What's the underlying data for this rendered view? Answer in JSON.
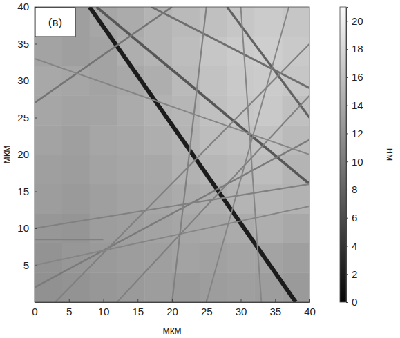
{
  "chart_data": {
    "type": "heatmap",
    "panel_label": "(в)",
    "x_label": "мкм",
    "y_label": "мкм",
    "xlim": [
      0,
      40
    ],
    "ylim": [
      0,
      40
    ],
    "xticks": [
      0,
      5,
      10,
      15,
      20,
      25,
      30,
      35,
      40
    ],
    "yticks": [
      5,
      10,
      15,
      20,
      25,
      30,
      35,
      40
    ],
    "cells": [
      [
        12.0,
        12.2,
        12.5,
        12.8,
        13.0,
        12.8,
        13.0,
        13.2,
        13.0,
        12.8
      ],
      [
        12.2,
        12.5,
        12.8,
        13.0,
        13.2,
        13.5,
        13.4,
        13.6,
        13.5,
        13.2
      ],
      [
        12.5,
        12.3,
        13.0,
        13.2,
        13.5,
        13.8,
        14.0,
        14.2,
        14.5,
        14.0
      ],
      [
        13.0,
        12.8,
        13.2,
        13.5,
        13.8,
        14.2,
        14.5,
        15.0,
        15.2,
        14.8
      ],
      [
        13.2,
        13.0,
        13.5,
        13.8,
        14.0,
        14.8,
        15.2,
        15.5,
        15.8,
        15.0
      ],
      [
        13.5,
        13.2,
        13.8,
        14.0,
        14.5,
        15.0,
        15.8,
        16.0,
        16.2,
        15.5
      ],
      [
        13.8,
        13.5,
        13.6,
        14.2,
        14.8,
        15.2,
        16.0,
        16.5,
        16.8,
        16.0
      ],
      [
        14.0,
        13.8,
        13.5,
        14.0,
        14.5,
        15.5,
        16.2,
        16.8,
        17.0,
        16.5
      ],
      [
        13.5,
        13.2,
        13.5,
        14.5,
        15.0,
        15.8,
        16.5,
        17.0,
        17.2,
        16.8
      ],
      [
        13.0,
        13.2,
        13.8,
        14.2,
        15.0,
        15.5,
        16.0,
        16.5,
        17.0,
        16.5
      ]
    ],
    "scratches": [
      {
        "x": [
          8,
          38
        ],
        "y": [
          40,
          0
        ],
        "z": 2
      },
      {
        "x": [
          9,
          40
        ],
        "y": [
          40,
          16
        ],
        "z": 7
      },
      {
        "x": [
          28,
          40
        ],
        "y": [
          40,
          25
        ],
        "z": 8
      },
      {
        "x": [
          17,
          40
        ],
        "y": [
          40,
          29
        ],
        "z": 9
      },
      {
        "x": [
          0,
          20
        ],
        "y": [
          27,
          40
        ],
        "z": 9.5
      },
      {
        "x": [
          0,
          40
        ],
        "y": [
          2,
          22
        ],
        "z": 10
      },
      {
        "x": [
          0,
          40
        ],
        "y": [
          10,
          16
        ],
        "z": 10.5
      },
      {
        "x": [
          3,
          40
        ],
        "y": [
          0,
          35
        ],
        "z": 10.5
      },
      {
        "x": [
          0,
          40
        ],
        "y": [
          5,
          13
        ],
        "z": 11
      },
      {
        "x": [
          12,
          40
        ],
        "y": [
          0,
          28
        ],
        "z": 10.5
      },
      {
        "x": [
          20,
          25
        ],
        "y": [
          0,
          40
        ],
        "z": 10.5
      },
      {
        "x": [
          33,
          30
        ],
        "y": [
          0,
          40
        ],
        "z": 11
      },
      {
        "x": [
          25,
          37
        ],
        "y": [
          0,
          40
        ],
        "z": 11
      },
      {
        "x": [
          0,
          10
        ],
        "y": [
          8.5,
          8.5
        ],
        "z": 10.5
      },
      {
        "x": [
          0,
          40
        ],
        "y": [
          33,
          20
        ],
        "z": 11
      }
    ],
    "colorbar": {
      "range": [
        0,
        21
      ],
      "ticks": [
        0,
        2,
        4,
        6,
        8,
        10,
        12,
        14,
        16,
        18,
        20
      ],
      "label": "нм"
    }
  }
}
